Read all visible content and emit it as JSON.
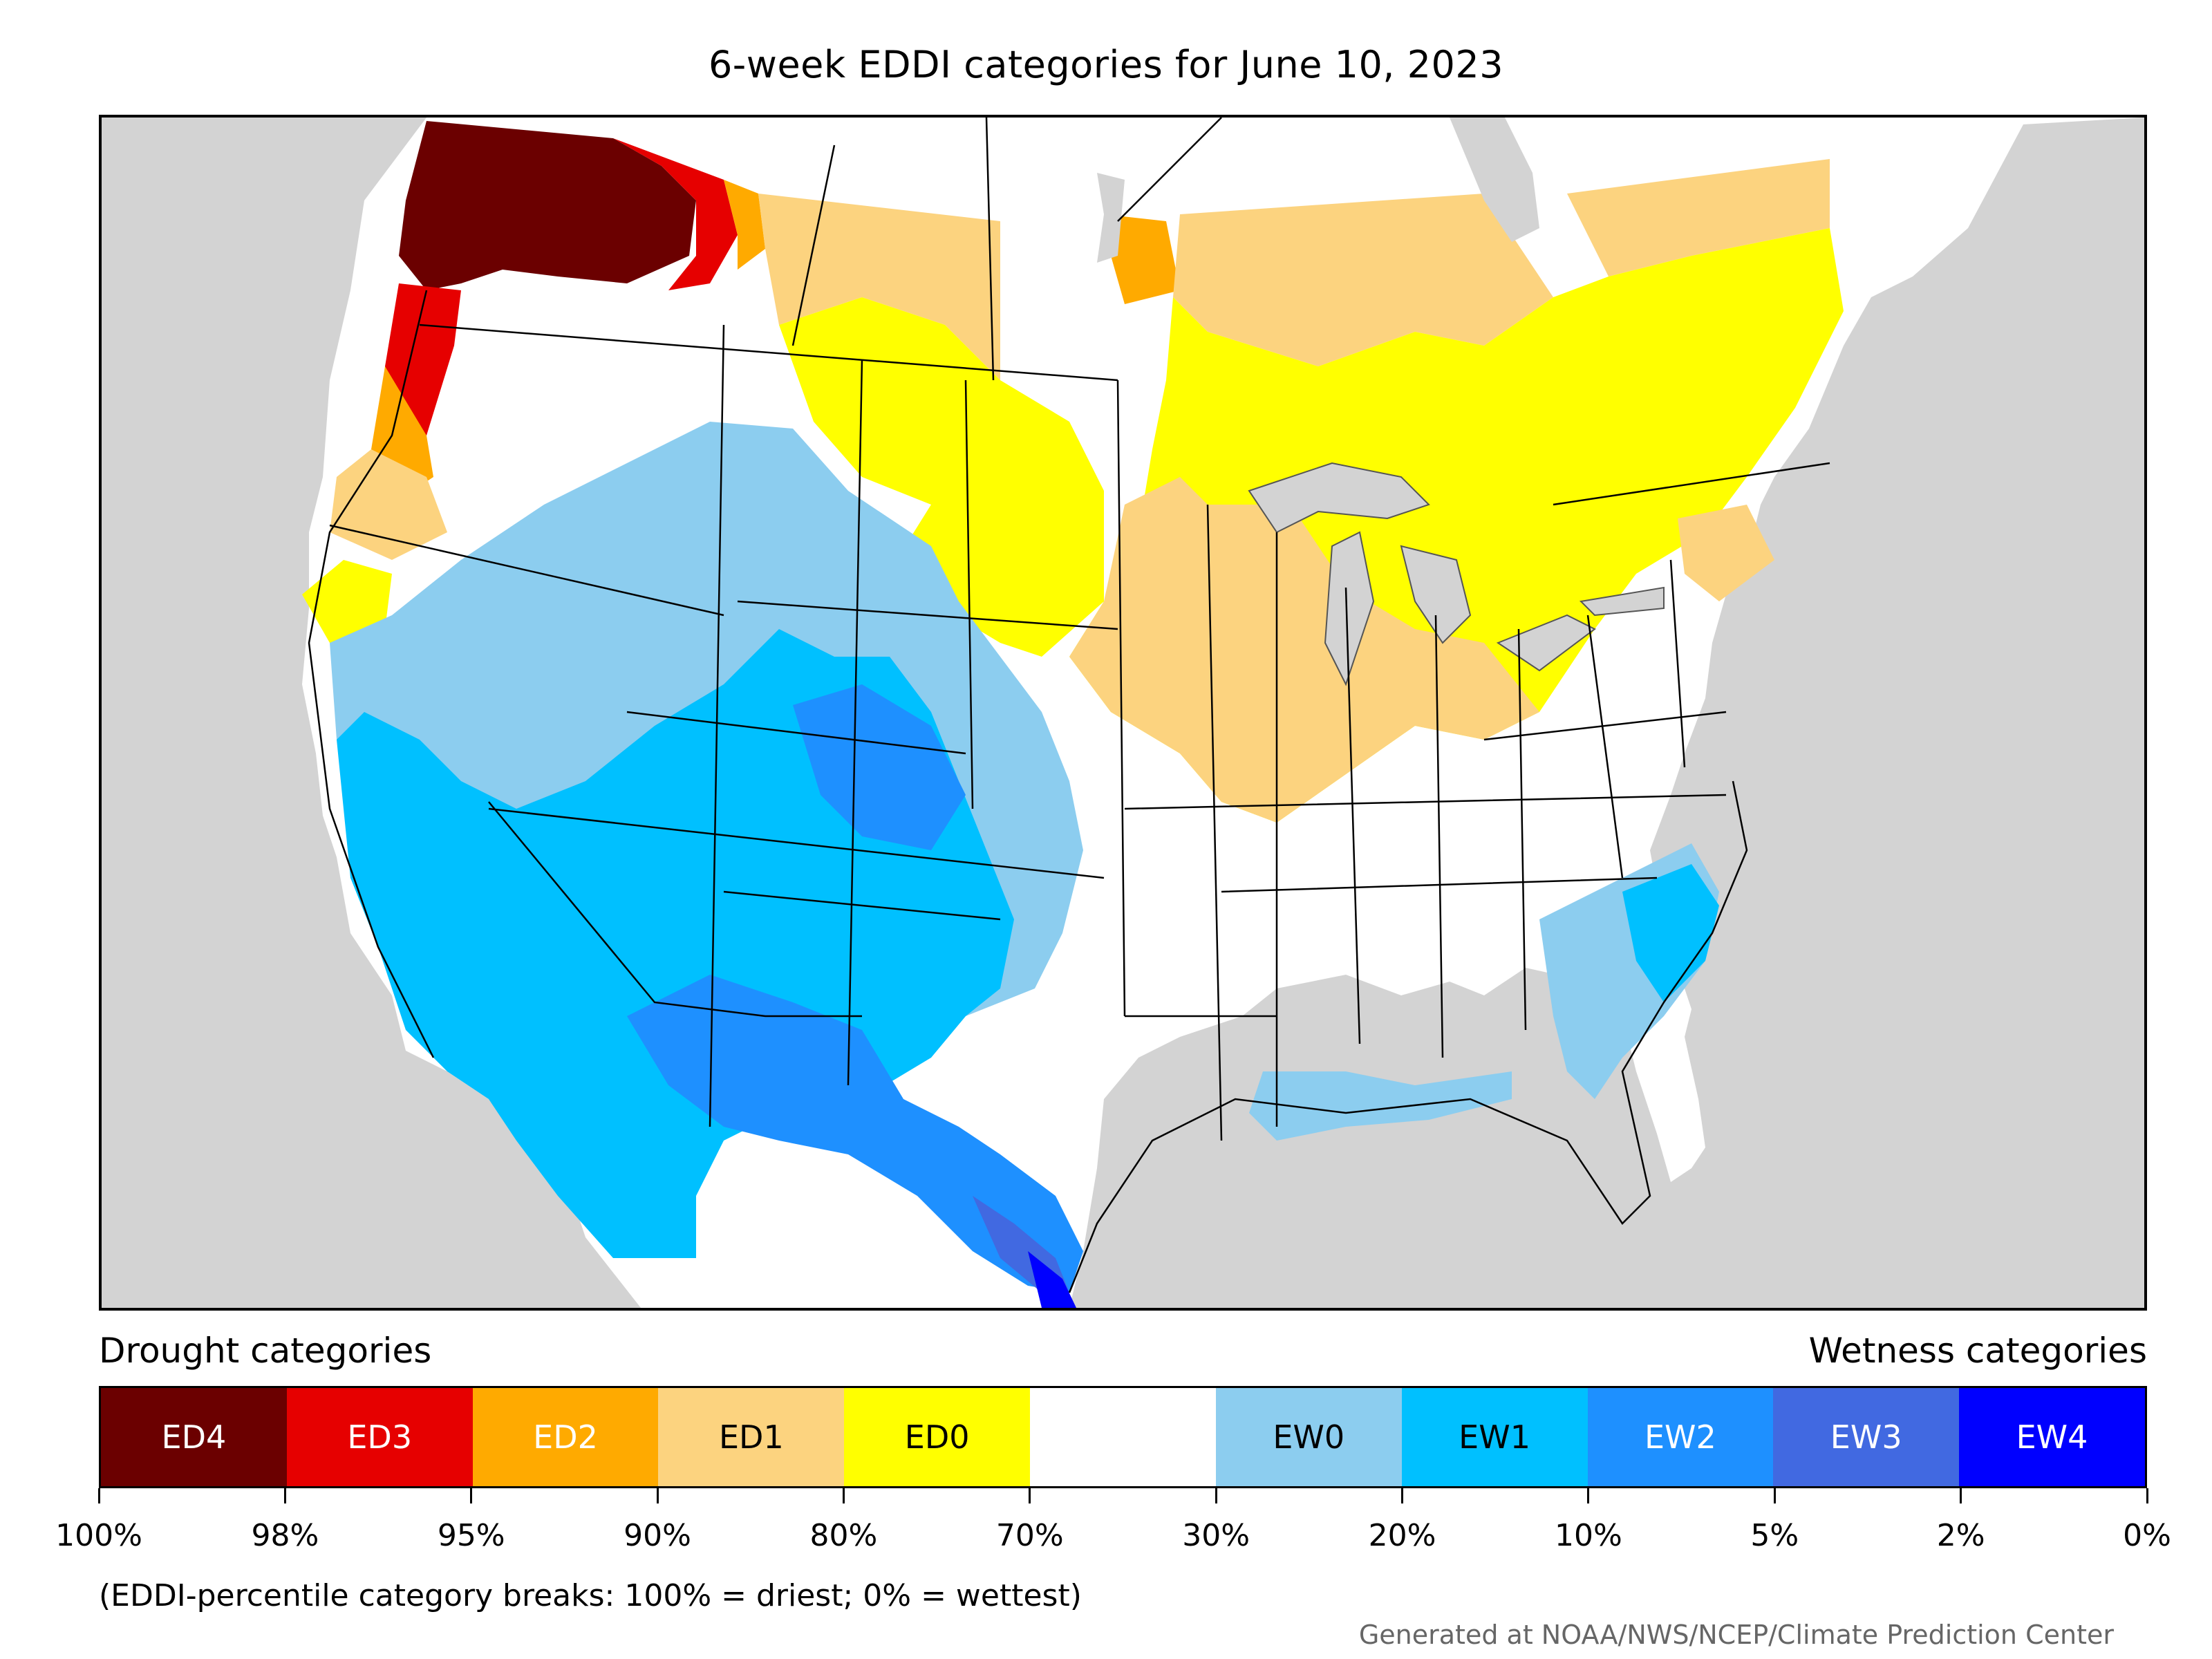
{
  "title": "6-week EDDI categories for June 10, 2023",
  "legend": {
    "left_heading": "Drought categories",
    "right_heading": "Wetness categories",
    "segments": [
      {
        "label": "ED4",
        "color": "#6b0000",
        "text_color": "#ffffff"
      },
      {
        "label": "ED3",
        "color": "#e60000",
        "text_color": "#ffffff"
      },
      {
        "label": "ED2",
        "color": "#ffaa00",
        "text_color": "#ffffff"
      },
      {
        "label": "ED1",
        "color": "#fcd37f",
        "text_color": "#000000"
      },
      {
        "label": "ED0",
        "color": "#ffff00",
        "text_color": "#000000"
      },
      {
        "label": "",
        "color": "#ffffff",
        "text_color": "#000000"
      },
      {
        "label": "EW0",
        "color": "#8ccdef",
        "text_color": "#000000"
      },
      {
        "label": "EW1",
        "color": "#00c0ff",
        "text_color": "#000000"
      },
      {
        "label": "EW2",
        "color": "#1e90ff",
        "text_color": "#ffffff"
      },
      {
        "label": "EW3",
        "color": "#4169e1",
        "text_color": "#ffffff"
      },
      {
        "label": "EW4",
        "color": "#0000ff",
        "text_color": "#ffffff"
      }
    ],
    "breaks": [
      "100%",
      "98%",
      "95%",
      "90%",
      "80%",
      "70%",
      "30%",
      "20%",
      "10%",
      "5%",
      "2%",
      "0%"
    ]
  },
  "note": "(EDDI-percentile category breaks: 100% = driest; 0% = wettest)",
  "credit": "Generated at NOAA/NWS/NCEP/Climate Prediction Center",
  "map": {
    "background_color": "#d3d3d3",
    "land_color": "#ffffff",
    "water_color": "#d3d3d3"
  }
}
